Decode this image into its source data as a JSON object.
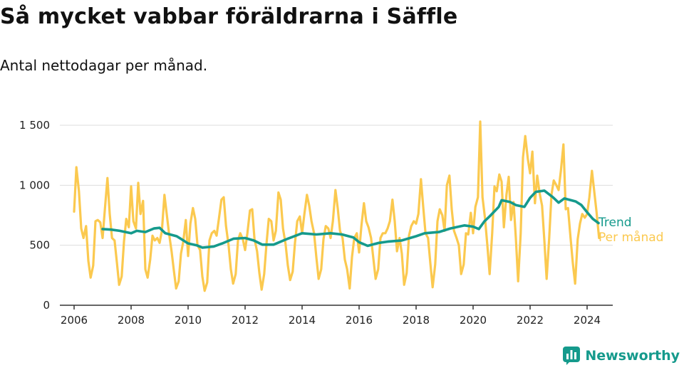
{
  "title": "Så mycket vabbar föräldrarna i Säffle",
  "subtitle": "Antal nettodagar per månad.",
  "brand": "Newsworthy",
  "colors": {
    "trend": "#159a8c",
    "monthly": "#fbc94f",
    "grid": "#dddddd",
    "axis": "#333333"
  },
  "chart_data": {
    "type": "line",
    "title": "Så mycket vabbar föräldrarna i Säffle",
    "subtitle": "Antal nettodagar per månad.",
    "xlabel": "",
    "ylabel": "",
    "xlim": [
      2005.5,
      2024.9
    ],
    "ylim": [
      0,
      1500
    ],
    "x_ticks": [
      "2006",
      "2008",
      "2010",
      "2012",
      "2014",
      "2016",
      "2018",
      "2020",
      "2022",
      "2024"
    ],
    "y_ticks": [
      0,
      500,
      1000,
      1500
    ],
    "y_tick_labels": [
      "0",
      "500",
      "1 000",
      "1 500"
    ],
    "grid": true,
    "legend": "right, inline at end of lines",
    "series": [
      {
        "name": "Trend",
        "color": "#159a8c",
        "points": [
          [
            2007.0,
            635
          ],
          [
            2007.3,
            630
          ],
          [
            2007.6,
            620
          ],
          [
            2008.0,
            600
          ],
          [
            2008.2,
            620
          ],
          [
            2008.5,
            610
          ],
          [
            2008.8,
            640
          ],
          [
            2009.0,
            645
          ],
          [
            2009.2,
            600
          ],
          [
            2009.6,
            575
          ],
          [
            2010.0,
            515
          ],
          [
            2010.3,
            500
          ],
          [
            2010.5,
            480
          ],
          [
            2010.9,
            490
          ],
          [
            2011.2,
            515
          ],
          [
            2011.6,
            555
          ],
          [
            2012.0,
            560
          ],
          [
            2012.3,
            540
          ],
          [
            2012.6,
            505
          ],
          [
            2013.0,
            505
          ],
          [
            2013.5,
            555
          ],
          [
            2014.0,
            600
          ],
          [
            2014.5,
            590
          ],
          [
            2015.0,
            600
          ],
          [
            2015.4,
            590
          ],
          [
            2015.8,
            565
          ],
          [
            2016.0,
            525
          ],
          [
            2016.3,
            495
          ],
          [
            2016.7,
            520
          ],
          [
            2017.0,
            530
          ],
          [
            2017.5,
            540
          ],
          [
            2018.0,
            575
          ],
          [
            2018.3,
            600
          ],
          [
            2018.8,
            610
          ],
          [
            2019.2,
            640
          ],
          [
            2019.7,
            665
          ],
          [
            2020.0,
            655
          ],
          [
            2020.2,
            635
          ],
          [
            2020.4,
            700
          ],
          [
            2020.6,
            745
          ],
          [
            2020.9,
            820
          ],
          [
            2021.0,
            875
          ],
          [
            2021.3,
            860
          ],
          [
            2021.5,
            835
          ],
          [
            2021.8,
            820
          ],
          [
            2022.0,
            895
          ],
          [
            2022.2,
            945
          ],
          [
            2022.5,
            955
          ],
          [
            2022.8,
            900
          ],
          [
            2023.0,
            855
          ],
          [
            2023.2,
            890
          ],
          [
            2023.6,
            865
          ],
          [
            2023.8,
            835
          ],
          [
            2024.0,
            775
          ],
          [
            2024.2,
            720
          ],
          [
            2024.4,
            685
          ]
        ]
      },
      {
        "name": "Per månad",
        "color": "#fbc94f",
        "points": [
          [
            2006.0,
            780
          ],
          [
            2006.08,
            1150
          ],
          [
            2006.17,
            950
          ],
          [
            2006.25,
            640
          ],
          [
            2006.33,
            560
          ],
          [
            2006.42,
            660
          ],
          [
            2006.5,
            370
          ],
          [
            2006.58,
            230
          ],
          [
            2006.67,
            330
          ],
          [
            2006.75,
            700
          ],
          [
            2006.83,
            710
          ],
          [
            2006.92,
            690
          ],
          [
            2007.0,
            560
          ],
          [
            2007.08,
            800
          ],
          [
            2007.17,
            1060
          ],
          [
            2007.25,
            760
          ],
          [
            2007.33,
            560
          ],
          [
            2007.42,
            540
          ],
          [
            2007.5,
            360
          ],
          [
            2007.58,
            170
          ],
          [
            2007.67,
            240
          ],
          [
            2007.75,
            530
          ],
          [
            2007.83,
            720
          ],
          [
            2007.92,
            650
          ],
          [
            2008.0,
            990
          ],
          [
            2008.08,
            700
          ],
          [
            2008.17,
            640
          ],
          [
            2008.25,
            1020
          ],
          [
            2008.33,
            760
          ],
          [
            2008.42,
            870
          ],
          [
            2008.5,
            300
          ],
          [
            2008.58,
            230
          ],
          [
            2008.67,
            380
          ],
          [
            2008.75,
            580
          ],
          [
            2008.83,
            540
          ],
          [
            2008.92,
            560
          ],
          [
            2009.0,
            520
          ],
          [
            2009.08,
            620
          ],
          [
            2009.17,
            920
          ],
          [
            2009.25,
            760
          ],
          [
            2009.33,
            600
          ],
          [
            2009.42,
            450
          ],
          [
            2009.5,
            290
          ],
          [
            2009.58,
            140
          ],
          [
            2009.67,
            200
          ],
          [
            2009.75,
            430
          ],
          [
            2009.83,
            530
          ],
          [
            2009.92,
            710
          ],
          [
            2010.0,
            410
          ],
          [
            2010.08,
            680
          ],
          [
            2010.17,
            810
          ],
          [
            2010.25,
            720
          ],
          [
            2010.33,
            500
          ],
          [
            2010.42,
            460
          ],
          [
            2010.5,
            240
          ],
          [
            2010.58,
            120
          ],
          [
            2010.67,
            190
          ],
          [
            2010.75,
            540
          ],
          [
            2010.83,
            600
          ],
          [
            2010.92,
            620
          ],
          [
            2011.0,
            580
          ],
          [
            2011.08,
            720
          ],
          [
            2011.17,
            880
          ],
          [
            2011.25,
            900
          ],
          [
            2011.33,
            660
          ],
          [
            2011.42,
            500
          ],
          [
            2011.5,
            300
          ],
          [
            2011.58,
            180
          ],
          [
            2011.67,
            260
          ],
          [
            2011.75,
            540
          ],
          [
            2011.83,
            600
          ],
          [
            2011.92,
            550
          ],
          [
            2012.0,
            460
          ],
          [
            2012.08,
            600
          ],
          [
            2012.17,
            790
          ],
          [
            2012.25,
            800
          ],
          [
            2012.33,
            550
          ],
          [
            2012.42,
            450
          ],
          [
            2012.5,
            270
          ],
          [
            2012.58,
            130
          ],
          [
            2012.67,
            260
          ],
          [
            2012.75,
            510
          ],
          [
            2012.83,
            720
          ],
          [
            2012.92,
            700
          ],
          [
            2013.0,
            540
          ],
          [
            2013.08,
            620
          ],
          [
            2013.17,
            940
          ],
          [
            2013.25,
            880
          ],
          [
            2013.33,
            640
          ],
          [
            2013.42,
            510
          ],
          [
            2013.5,
            330
          ],
          [
            2013.58,
            210
          ],
          [
            2013.67,
            280
          ],
          [
            2013.75,
            520
          ],
          [
            2013.83,
            700
          ],
          [
            2013.92,
            740
          ],
          [
            2014.0,
            600
          ],
          [
            2014.08,
            760
          ],
          [
            2014.17,
            920
          ],
          [
            2014.25,
            830
          ],
          [
            2014.33,
            700
          ],
          [
            2014.42,
            600
          ],
          [
            2014.5,
            400
          ],
          [
            2014.58,
            220
          ],
          [
            2014.67,
            300
          ],
          [
            2014.75,
            550
          ],
          [
            2014.83,
            660
          ],
          [
            2014.92,
            640
          ],
          [
            2015.0,
            560
          ],
          [
            2015.08,
            700
          ],
          [
            2015.17,
            960
          ],
          [
            2015.25,
            810
          ],
          [
            2015.33,
            620
          ],
          [
            2015.42,
            560
          ],
          [
            2015.5,
            380
          ],
          [
            2015.58,
            300
          ],
          [
            2015.67,
            140
          ],
          [
            2015.75,
            400
          ],
          [
            2015.83,
            560
          ],
          [
            2015.92,
            600
          ],
          [
            2016.0,
            440
          ],
          [
            2016.08,
            660
          ],
          [
            2016.17,
            850
          ],
          [
            2016.25,
            700
          ],
          [
            2016.33,
            650
          ],
          [
            2016.42,
            560
          ],
          [
            2016.5,
            390
          ],
          [
            2016.58,
            220
          ],
          [
            2016.67,
            300
          ],
          [
            2016.75,
            560
          ],
          [
            2016.83,
            600
          ],
          [
            2016.92,
            600
          ],
          [
            2017.0,
            640
          ],
          [
            2017.08,
            700
          ],
          [
            2017.17,
            880
          ],
          [
            2017.25,
            700
          ],
          [
            2017.33,
            450
          ],
          [
            2017.42,
            560
          ],
          [
            2017.5,
            430
          ],
          [
            2017.58,
            170
          ],
          [
            2017.67,
            270
          ],
          [
            2017.75,
            580
          ],
          [
            2017.83,
            660
          ],
          [
            2017.92,
            700
          ],
          [
            2018.0,
            680
          ],
          [
            2018.08,
            760
          ],
          [
            2018.17,
            1050
          ],
          [
            2018.25,
            820
          ],
          [
            2018.33,
            600
          ],
          [
            2018.42,
            560
          ],
          [
            2018.5,
            350
          ],
          [
            2018.58,
            150
          ],
          [
            2018.67,
            340
          ],
          [
            2018.75,
            700
          ],
          [
            2018.83,
            800
          ],
          [
            2018.92,
            750
          ],
          [
            2019.0,
            620
          ],
          [
            2019.08,
            1000
          ],
          [
            2019.17,
            1080
          ],
          [
            2019.25,
            800
          ],
          [
            2019.33,
            620
          ],
          [
            2019.42,
            560
          ],
          [
            2019.5,
            500
          ],
          [
            2019.58,
            260
          ],
          [
            2019.67,
            340
          ],
          [
            2019.75,
            600
          ],
          [
            2019.83,
            590
          ],
          [
            2019.92,
            770
          ],
          [
            2020.0,
            600
          ],
          [
            2020.08,
            820
          ],
          [
            2020.17,
            900
          ],
          [
            2020.25,
            1530
          ],
          [
            2020.33,
            900
          ],
          [
            2020.42,
            720
          ],
          [
            2020.5,
            500
          ],
          [
            2020.58,
            260
          ],
          [
            2020.67,
            600
          ],
          [
            2020.75,
            990
          ],
          [
            2020.83,
            950
          ],
          [
            2020.92,
            1090
          ],
          [
            2021.0,
            1030
          ],
          [
            2021.08,
            650
          ],
          [
            2021.17,
            920
          ],
          [
            2021.25,
            1070
          ],
          [
            2021.33,
            710
          ],
          [
            2021.42,
            860
          ],
          [
            2021.5,
            560
          ],
          [
            2021.58,
            200
          ],
          [
            2021.67,
            600
          ],
          [
            2021.75,
            1230
          ],
          [
            2021.83,
            1410
          ],
          [
            2021.92,
            1220
          ],
          [
            2022.0,
            1100
          ],
          [
            2022.08,
            1280
          ],
          [
            2022.17,
            850
          ],
          [
            2022.25,
            1080
          ],
          [
            2022.33,
            940
          ],
          [
            2022.42,
            830
          ],
          [
            2022.5,
            540
          ],
          [
            2022.58,
            220
          ],
          [
            2022.67,
            560
          ],
          [
            2022.75,
            920
          ],
          [
            2022.83,
            1040
          ],
          [
            2022.92,
            1000
          ],
          [
            2023.0,
            960
          ],
          [
            2023.08,
            1120
          ],
          [
            2023.17,
            1340
          ],
          [
            2023.25,
            800
          ],
          [
            2023.33,
            810
          ],
          [
            2023.42,
            560
          ],
          [
            2023.5,
            350
          ],
          [
            2023.58,
            180
          ],
          [
            2023.67,
            550
          ],
          [
            2023.75,
            680
          ],
          [
            2023.83,
            760
          ],
          [
            2023.92,
            730
          ],
          [
            2024.0,
            760
          ],
          [
            2024.08,
            900
          ],
          [
            2024.17,
            1120
          ],
          [
            2024.25,
            950
          ],
          [
            2024.33,
            780
          ],
          [
            2024.42,
            560
          ]
        ]
      }
    ]
  }
}
